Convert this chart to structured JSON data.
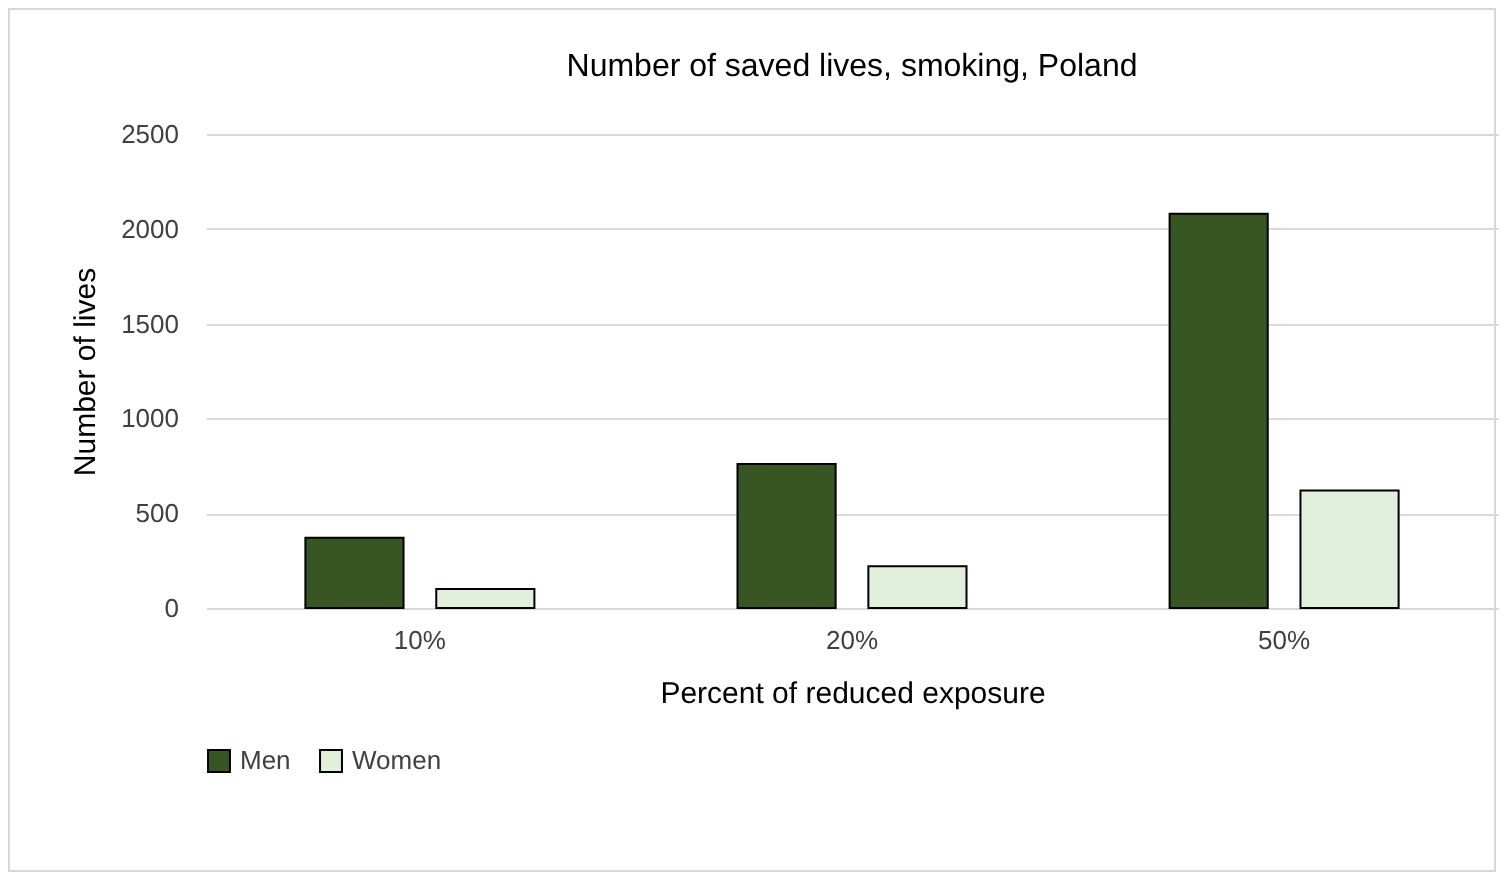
{
  "chart_data": {
    "type": "bar",
    "title": "Number of saved lives, smoking, Poland",
    "xlabel": "Percent of reduced exposure",
    "ylabel": "Number of lives",
    "categories": [
      "10%",
      "20%",
      "50%"
    ],
    "series": [
      {
        "name": "Men",
        "color": "#375623",
        "values": [
          370,
          760,
          2080
        ]
      },
      {
        "name": "Women",
        "color": "#e2efda",
        "values": [
          100,
          220,
          620
        ]
      }
    ],
    "ylim": [
      0,
      2500
    ],
    "yticks": [
      0,
      500,
      1000,
      1500,
      2000,
      2500
    ],
    "grid": "y",
    "legend": "bottom"
  }
}
